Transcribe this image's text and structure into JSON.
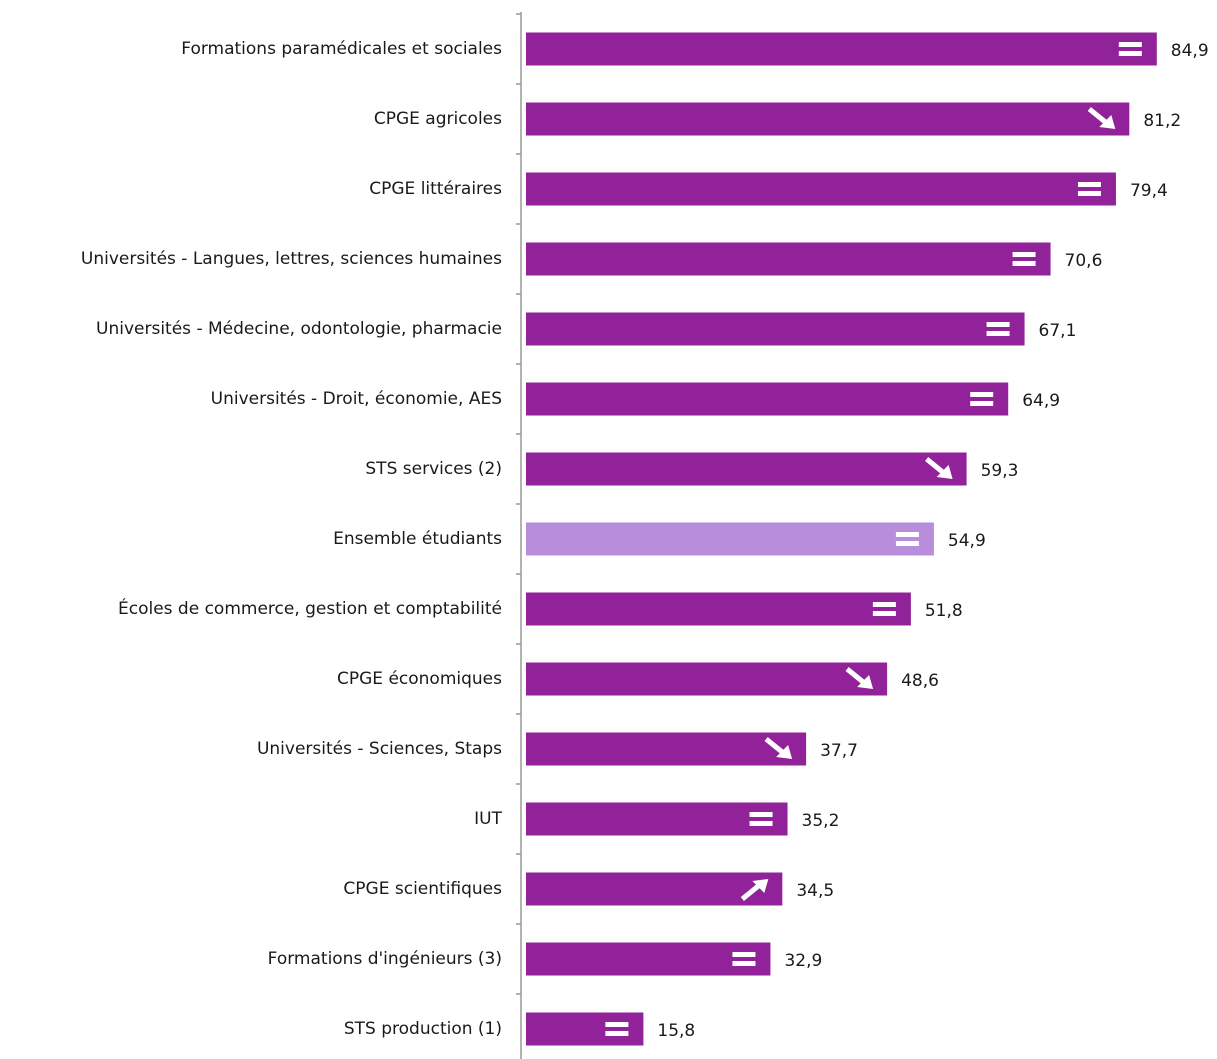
{
  "chart_data": {
    "type": "hbar",
    "categories": [
      "Formations paramédicales et sociales",
      "CPGE agricoles",
      "CPGE littéraires",
      "Universités - Langues, lettres, sciences humaines",
      "Universités - Médecine, odontologie, pharmacie",
      "Universités - Droit, économie, AES",
      "STS services (2)",
      "Ensemble étudiants",
      "Écoles de commerce, gestion et comptabilité",
      "CPGE économiques",
      "Universités - Sciences, Staps",
      "IUT",
      "CPGE scientifiques",
      "Formations d'ingénieurs (3)",
      "STS production (1)"
    ],
    "values": [
      84.9,
      81.2,
      79.4,
      70.6,
      67.1,
      64.9,
      59.3,
      54.9,
      51.8,
      48.6,
      37.7,
      35.2,
      34.5,
      32.9,
      15.8
    ],
    "value_labels": [
      "84,9",
      "81,2",
      "79,4",
      "70,6",
      "67,1",
      "64,9",
      "59,3",
      "54,9",
      "51,8",
      "48,6",
      "37,7",
      "35,2",
      "34,5",
      "32,9",
      "15,8"
    ],
    "colors": [
      "#92229a",
      "#92229a",
      "#92229a",
      "#92229a",
      "#92229a",
      "#92229a",
      "#92229a",
      "#b88ddc",
      "#92229a",
      "#92229a",
      "#92229a",
      "#92229a",
      "#92229a",
      "#92229a",
      "#92229a"
    ],
    "trend": [
      "equal",
      "down",
      "equal",
      "equal",
      "equal",
      "equal",
      "down",
      "equal",
      "equal",
      "down",
      "down",
      "equal",
      "up",
      "equal",
      "equal"
    ],
    "xlim": [
      0,
      90
    ]
  }
}
